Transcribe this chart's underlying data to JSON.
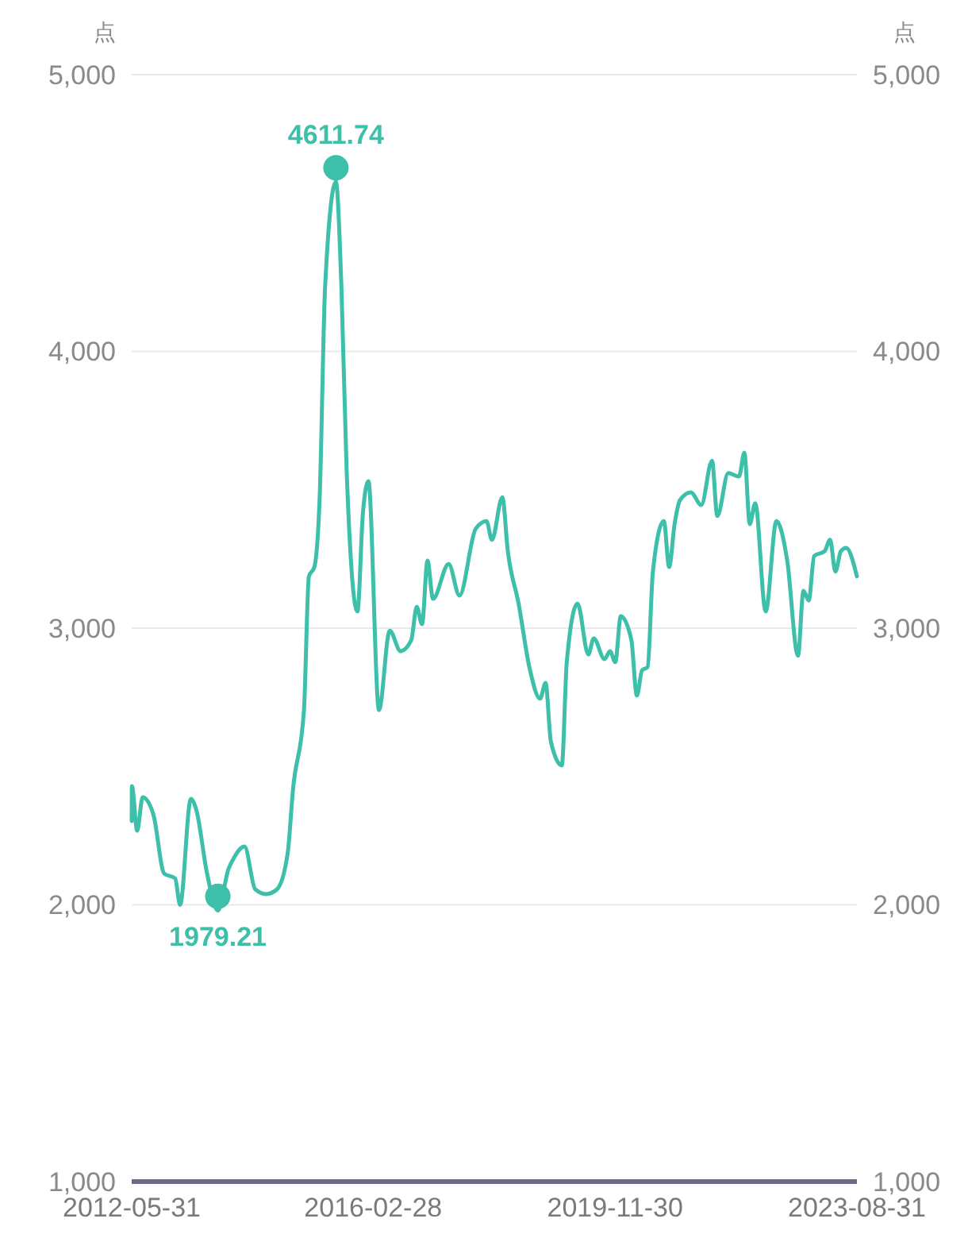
{
  "chart_data": {
    "type": "line",
    "ylabel": "点",
    "y2label": "点",
    "series": [
      {
        "color": "#3dbfa9",
        "x": [
          "2012-05-31",
          "2012-06",
          "2012-07",
          "2012-08",
          "2012-10",
          "2012-12",
          "2013-02",
          "2013-03",
          "2013-05",
          "2013-06",
          "2013-08",
          "2013-10",
          "2013-12",
          "2014-01",
          "2014-03",
          "2014-05",
          "2014-07",
          "2014-09",
          "2014-11",
          "2014-12",
          "2015-02",
          "2015-03",
          "2015-04",
          "2015-05",
          "2015-06",
          "2015-08",
          "2015-09",
          "2015-10",
          "2015-12",
          "2016-01",
          "2016-02",
          "2016-04",
          "2016-06",
          "2016-08",
          "2016-10",
          "2016-11",
          "2016-12",
          "2017-01",
          "2017-02",
          "2017-05",
          "2017-07",
          "2017-10",
          "2017-12",
          "2018-01",
          "2018-03",
          "2018-04",
          "2018-06",
          "2018-08",
          "2018-10",
          "2018-11",
          "2018-12",
          "2019-02",
          "2019-03",
          "2019-05",
          "2019-07",
          "2019-08",
          "2019-10",
          "2019-11",
          "2019-12",
          "2020-01",
          "2020-03",
          "2020-04",
          "2020-05",
          "2020-06",
          "2020-07",
          "2020-09",
          "2020-10",
          "2020-11",
          "2020-12",
          "2021-02",
          "2021-04",
          "2021-06",
          "2021-07",
          "2021-09",
          "2021-11",
          "2021-12",
          "2022-01",
          "2022-02",
          "2022-04",
          "2022-06",
          "2022-08",
          "2022-10",
          "2022-11",
          "2022-12",
          "2023-01",
          "2023-03",
          "2023-04",
          "2023-05",
          "2023-06",
          "2023-07",
          "2023-08-31"
        ],
        "values": [
          2303,
          2429,
          2268,
          2389,
          2326,
          2113,
          2096,
          2000,
          2383,
          2343,
          2113,
          1979.21,
          2131,
          2171,
          2211,
          2056,
          2039,
          2056,
          2188,
          2418,
          2704,
          3187,
          3221,
          3473,
          4237,
          4611.74,
          4237,
          3565,
          3060,
          3416,
          3531,
          2704,
          2991,
          2917,
          2957,
          3077,
          3014,
          3244,
          3106,
          3232,
          3118,
          3359,
          3387,
          3319,
          3473,
          3278,
          3089,
          2859,
          2745,
          2802,
          2590,
          2504,
          2877,
          3089,
          2905,
          2963,
          2888,
          2917,
          2877,
          3043,
          2957,
          2756,
          2848,
          2859,
          3204,
          3387,
          3221,
          3376,
          3462,
          3491,
          3445,
          3605,
          3405,
          3560,
          3548,
          3634,
          3376,
          3451,
          3060,
          3387,
          3244,
          2900,
          3135,
          3100,
          3261,
          3278,
          3319,
          3204,
          3278,
          3290,
          3187
        ]
      }
    ],
    "annotations": [
      {
        "text": "4611.74",
        "x": "2015-08",
        "y": 4611.74
      },
      {
        "text": "1979.21",
        "x": "2013-10",
        "y": 1979.21
      }
    ],
    "xlim": [
      "2012-05-31",
      "2023-08-31"
    ],
    "xticks": [
      "2012-05-31",
      "2016-02-28",
      "2019-11-30",
      "2023-08-31"
    ],
    "ylim": [
      1000,
      5000
    ],
    "yticks": [
      {
        "value": 1000,
        "label": "1,000"
      },
      {
        "value": 2000,
        "label": "2,000"
      },
      {
        "value": 3000,
        "label": "3,000"
      },
      {
        "value": 4000,
        "label": "4,000"
      },
      {
        "value": 5000,
        "label": "5,000"
      }
    ],
    "y2lim": [
      1000,
      5000
    ],
    "y2ticks": [
      {
        "value": 1000,
        "label": "1,000"
      },
      {
        "value": 2000,
        "label": "2,000"
      },
      {
        "value": 3000,
        "label": "3,000"
      },
      {
        "value": 4000,
        "label": "4,000"
      },
      {
        "value": 5000,
        "label": "5,000"
      }
    ],
    "grid": "y",
    "marker": "none",
    "line_style": "solid"
  }
}
